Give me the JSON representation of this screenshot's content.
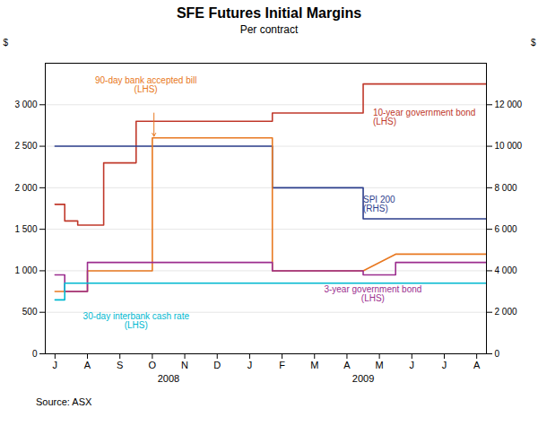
{
  "chart_data": {
    "type": "line",
    "title": "SFE Futures Initial Margins",
    "subtitle": "Per contract",
    "source": "Source: ASX",
    "ylabel": "$",
    "y2label": "$",
    "xlim": [
      -0.3,
      13.3
    ],
    "xticks": [
      {
        "value": 0,
        "label": "J"
      },
      {
        "value": 1,
        "label": "A"
      },
      {
        "value": 2,
        "label": "S"
      },
      {
        "value": 3,
        "label": "O"
      },
      {
        "value": 4,
        "label": "N"
      },
      {
        "value": 5,
        "label": "D"
      },
      {
        "value": 6,
        "label": "J"
      },
      {
        "value": 7,
        "label": "F"
      },
      {
        "value": 8,
        "label": "M"
      },
      {
        "value": 9,
        "label": "A"
      },
      {
        "value": 10,
        "label": "M"
      },
      {
        "value": 11,
        "label": "J"
      },
      {
        "value": 12,
        "label": "J"
      },
      {
        "value": 13,
        "label": "A"
      }
    ],
    "year_labels": [
      {
        "text": "2008",
        "x": 3.5
      },
      {
        "text": "2009",
        "x": 9.5
      }
    ],
    "ylim": [
      0,
      3500
    ],
    "yticks": [
      0,
      500,
      {
        "value": 1000,
        "label": "1 000"
      },
      {
        "value": 1500,
        "label": "1 500"
      },
      {
        "value": 2000,
        "label": "2 000"
      },
      {
        "value": 2500,
        "label": "2 500"
      },
      {
        "value": 3000,
        "label": "3 000"
      }
    ],
    "y2lim": [
      0,
      14000
    ],
    "y2ticks": [
      0,
      {
        "value": 2000,
        "label": "2 000"
      },
      {
        "value": 4000,
        "label": "4 000"
      },
      {
        "value": 6000,
        "label": "6 000"
      },
      {
        "value": 8000,
        "label": "8 000"
      },
      {
        "value": 10000,
        "label": "10 000"
      },
      {
        "value": 12000,
        "label": "12 000"
      }
    ],
    "grid": true,
    "series": [
      {
        "color": "#c0392b",
        "axis": "y",
        "x": [
          0,
          0.3,
          0.3,
          0.7,
          0.7,
          1.5,
          1.5,
          2.5,
          2.5,
          3.0,
          3.0,
          6.7,
          6.7,
          9.5,
          9.5,
          13.3
        ],
        "values": [
          1800,
          1800,
          1600,
          1600,
          1550,
          1550,
          2300,
          2300,
          2800,
          2800,
          2800,
          2800,
          2900,
          2900,
          3250,
          3250
        ],
        "label": {
          "text": "10-year government bond\n(LHS)",
          "x": 9.8,
          "y": 2850
        }
      },
      {
        "color": "#2c3e8c",
        "axis": "y2",
        "x": [
          0,
          6.7,
          6.7,
          9.5,
          9.5,
          10.5,
          10.5,
          13.3
        ],
        "values": [
          10000,
          10000,
          8000,
          8000,
          6500,
          6500,
          6500,
          6500
        ],
        "label": {
          "text": "SPI 200\n(RHS)",
          "x": 9.5,
          "y": 7200
        }
      },
      {
        "color": "#e87820",
        "axis": "y",
        "x": [
          0,
          1.0,
          1.0,
          3.0,
          3.0,
          6.7,
          6.7,
          9.5,
          9.5,
          10.5,
          10.5,
          13.3
        ],
        "values": [
          750,
          750,
          1000,
          1000,
          2600,
          2600,
          1000,
          1000,
          1000,
          1200,
          1200,
          1200
        ],
        "label": {
          "text": "90-day bank accepted bill\n(LHS)",
          "x": 2.8,
          "y": 3150,
          "arrow": {
            "from": [
              3.05,
              2900
            ],
            "to": [
              3.05,
              2620
            ]
          }
        }
      },
      {
        "color": "#9b2d8e",
        "axis": "y",
        "x": [
          0,
          0.3,
          0.3,
          1.0,
          1.0,
          3.0,
          3.0,
          6.7,
          6.7,
          9.5,
          9.5,
          10.5,
          10.5,
          13.3
        ],
        "values": [
          950,
          950,
          750,
          750,
          1100,
          1100,
          1100,
          1100,
          1000,
          1000,
          950,
          950,
          1100,
          1100
        ],
        "label": {
          "text": "3-year government bond\n(LHS)",
          "x": 9.8,
          "y": 820
        }
      },
      {
        "color": "#00b8d0",
        "axis": "y",
        "x": [
          0,
          0.3,
          0.3,
          3.0,
          3.0,
          13.3
        ],
        "values": [
          650,
          650,
          850,
          850,
          850,
          850
        ],
        "label": {
          "text": "30-day interbank cash rate\n(LHS)",
          "x": 2.5,
          "y": 490
        }
      }
    ]
  }
}
